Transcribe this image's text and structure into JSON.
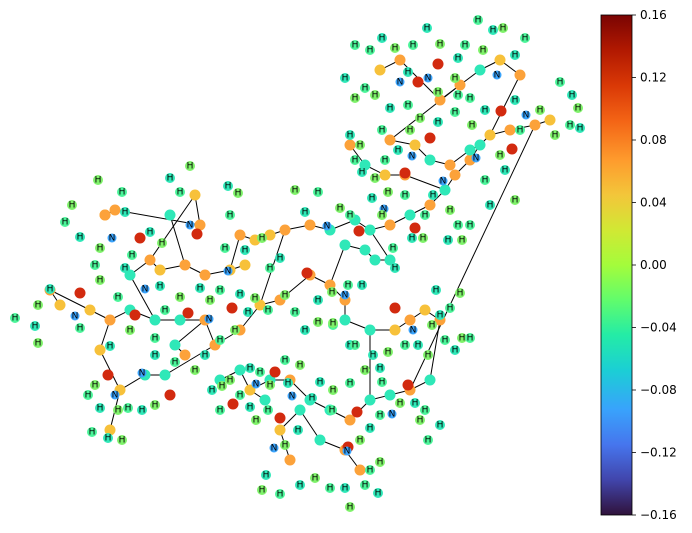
{
  "colorbar": {
    "ticks": [
      "0.16",
      "0.12",
      "0.08",
      "0.04",
      "0.00",
      "−0.04",
      "−0.08",
      "−0.12",
      "−0.16"
    ],
    "vmin": -0.16,
    "vmax": 0.16,
    "colormap": "turbo"
  },
  "molecule": {
    "element_labels": {
      "hydrogen": "H",
      "nitrogen": "N"
    },
    "colors": {
      "oxygen": "#d22a0f",
      "bond": "#000000"
    }
  }
}
